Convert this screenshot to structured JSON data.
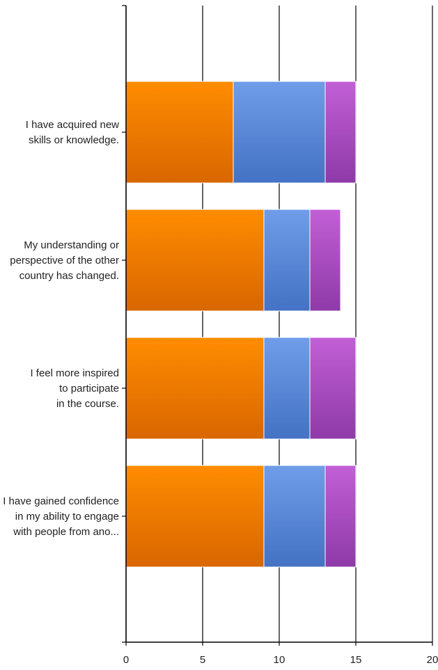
{
  "chart_data": {
    "type": "bar",
    "orientation": "horizontal",
    "stacked": true,
    "categories": [
      [
        "I have acquired new",
        "skills or knowledge."
      ],
      [
        "My understanding or",
        "perspective of the other",
        "country has changed."
      ],
      [
        "I feel more inspired",
        "to participate",
        "in the course."
      ],
      [
        "I have gained confidence",
        "in my ability to engage",
        "with people from ano..."
      ]
    ],
    "series": [
      {
        "values": [
          7,
          9,
          9,
          9
        ],
        "color_top": "#ff8c00",
        "color_bottom": "#d96600"
      },
      {
        "values": [
          6,
          3,
          3,
          4
        ],
        "color_top": "#6f9de8",
        "color_bottom": "#4472c4"
      },
      {
        "values": [
          2,
          2,
          3,
          2
        ],
        "color_top": "#c25fd6",
        "color_bottom": "#8e3aa8"
      }
    ],
    "xlim": [
      0,
      20
    ],
    "xticks": [
      "0",
      "5",
      "10",
      "15",
      "20"
    ],
    "grid": true,
    "legend": "none"
  }
}
